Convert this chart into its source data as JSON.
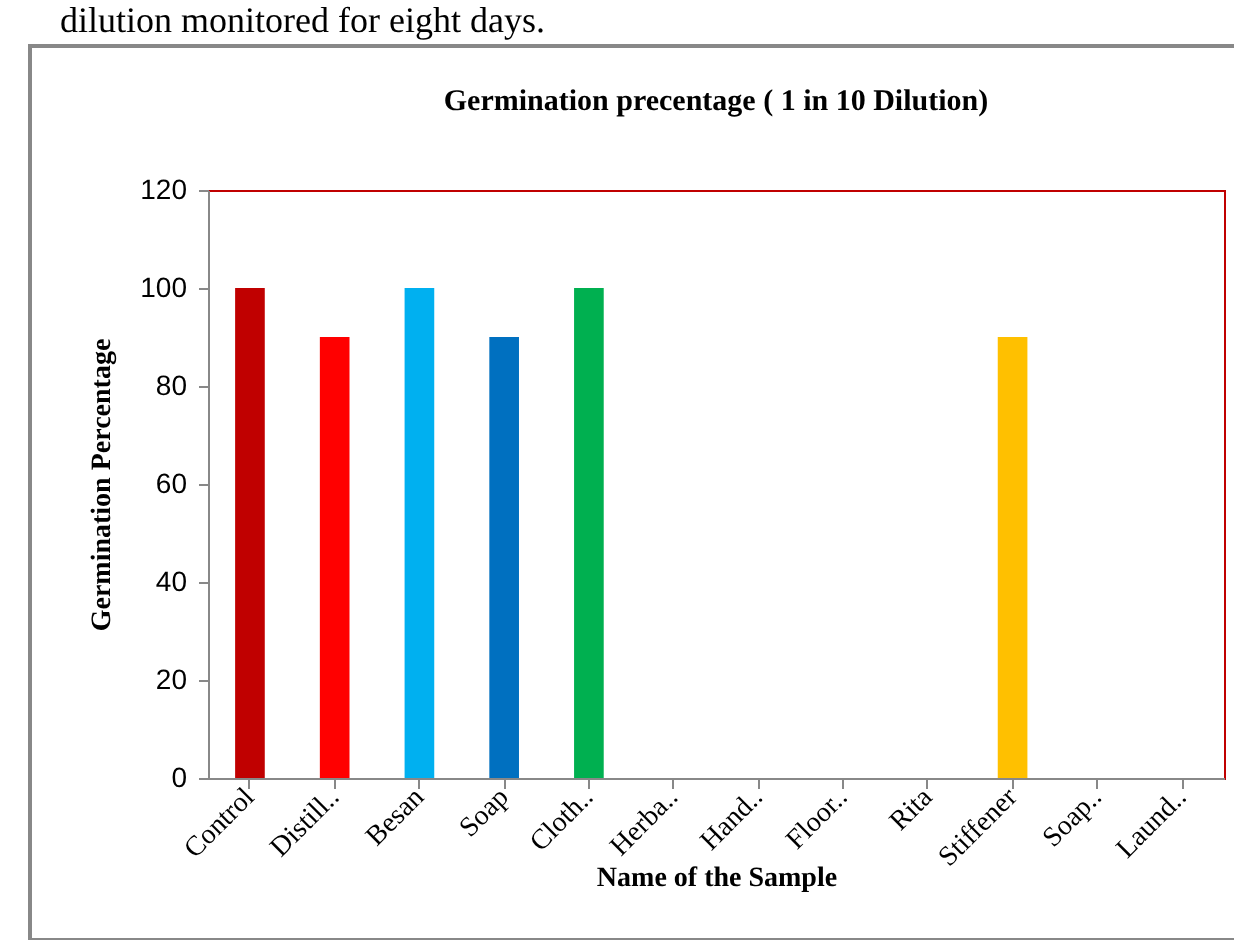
{
  "chart_data": {
    "type": "bar",
    "title": "Germination precentage ( 1 in 10 Dilution)",
    "xlabel": "Name of the Sample",
    "ylabel": "Germination Percentage",
    "annotations": [
      "dilution monitored for eight days."
    ],
    "categories": [
      "Control",
      "Distill..",
      "Besan",
      "Soap",
      "Cloth..",
      "Herba..",
      "Hand..",
      "Floor..",
      "Rita",
      "Stiffener",
      "Soap..",
      "Laund.."
    ],
    "values": [
      100,
      90,
      100,
      90,
      100,
      0,
      0,
      0,
      0,
      90,
      0,
      0
    ],
    "colors": [
      "#c00000",
      "#ff0000",
      "#00b0f0",
      "#0070c0",
      "#00b050",
      "#92d050",
      "#7030a0",
      "#002060",
      "#ffc000",
      "#ffc000",
      "#c00000",
      "#ff0000"
    ],
    "ylim": [
      0,
      120
    ],
    "yticks": [
      0,
      20,
      40,
      60,
      80,
      100,
      120
    ],
    "grid": false
  }
}
